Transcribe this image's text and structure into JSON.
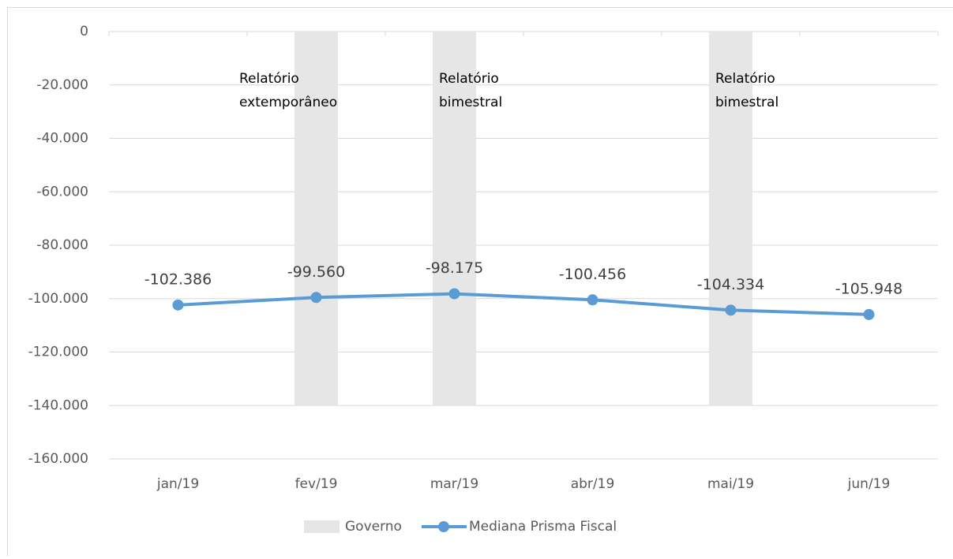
{
  "chart_data": {
    "type": "bar-line",
    "categories": [
      "jan/19",
      "fev/19",
      "mar/19",
      "abr/19",
      "mai/19",
      "jun/19"
    ],
    "series": [
      {
        "name": "Governo",
        "type": "bar",
        "color": "#e7e6e6",
        "values": [
          null,
          -140000,
          -140000,
          null,
          -140000,
          null
        ],
        "labels": [
          null,
          "Relatório extemporâneo",
          "Relatório bimestral",
          null,
          "Relatório bimestral",
          null
        ]
      },
      {
        "name": "Mediana Prisma Fiscal",
        "type": "line",
        "color": "#5b9bd5",
        "values": [
          -102386,
          -99560,
          -98175,
          -100456,
          -104334,
          -105948
        ],
        "value_labels": [
          "-102.386",
          "-99.560",
          "-98.175",
          "-100.456",
          "-104.334",
          "-105.948"
        ]
      }
    ],
    "ylim": [
      -160000,
      0
    ],
    "yticks": [
      0,
      {
        "value": -20000,
        "label": "-20.000"
      },
      {
        "value": -40000,
        "label": "-40.000"
      },
      {
        "value": -60000,
        "label": "-60.000"
      },
      {
        "value": -80000,
        "label": "-80.000"
      },
      {
        "value": -100000,
        "label": "-100.000"
      },
      {
        "value": -120000,
        "label": "-120.000"
      },
      {
        "value": -140000,
        "label": "-140.000"
      },
      {
        "value": -160000,
        "label": "-160.000"
      }
    ],
    "grid": true,
    "legend": "bottom"
  }
}
